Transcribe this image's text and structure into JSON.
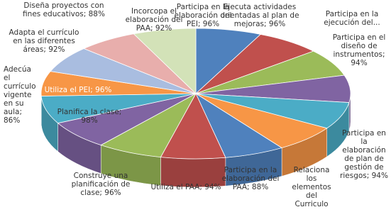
{
  "chart_data": {
    "type": "pie",
    "categories": [
      "Participa en la elaboración del PEI; 96%",
      "Ejecuta actividades orientadas al plan de mejoras; 96%",
      "Participa en la ejecución del...",
      "Participa en el diseño de instrumentos; 94%",
      "Participa en la elaboración de plan de gestión de riesgos; 94%",
      "Relaciona los elementos del Curriculo",
      "Participa en la elaboración del PAA; 88%",
      "Utiliza el PAA; 94%",
      "Construye una planificación de clase; 96%",
      "Planifica la clase; 98%",
      "Utiliza el PEI; 96%",
      "Adecúa el currículo vigente en su aula; 86%",
      "Adapta el currículo en las diferentes áreas; 92%",
      "Diseña proyectos con fines educativos; 88%",
      "Incorcopa el elaboración del PAA; 92%"
    ],
    "values": [
      96,
      96,
      94,
      94,
      94,
      94,
      88,
      94,
      96,
      98,
      96,
      86,
      92,
      88,
      92
    ],
    "colors": [
      "#4f81bd",
      "#c0504d",
      "#9bbb59",
      "#8064a2",
      "#4bacc6",
      "#f79646",
      "#4f81bd",
      "#c0504d",
      "#9bbb59",
      "#8064a2",
      "#4bacc6",
      "#f79646",
      "#a9bde0",
      "#e8aeac",
      "#d3e2b8"
    ]
  }
}
